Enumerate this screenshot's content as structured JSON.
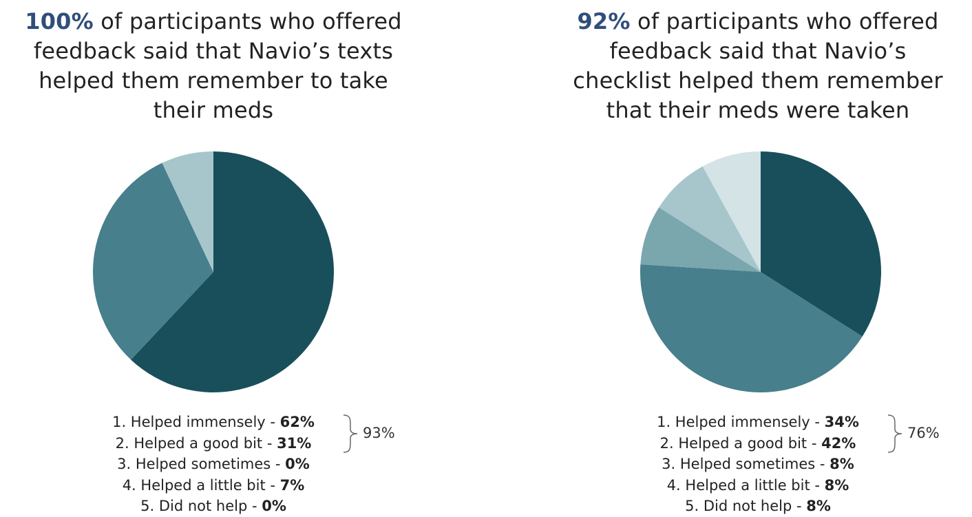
{
  "colors": {
    "highlight": "#2f4e7a",
    "slices": [
      "#184f5b",
      "#477f8c",
      "#7aa6ae",
      "#a7c6cb",
      "#d3e3e6"
    ]
  },
  "panels": [
    {
      "title_highlight": "100%",
      "title_lines": [
        "of participants who offered",
        "feedback said that Navio’s texts",
        "helped them remember to take",
        "their meds"
      ],
      "legend": [
        {
          "label": "1. Helped immensely - ",
          "value": "62%"
        },
        {
          "label": "2. Helped a good bit - ",
          "value": "31%"
        },
        {
          "label": "3. Helped sometimes - ",
          "value": "0%"
        },
        {
          "label": "4. Helped a little bit - ",
          "value": "7%"
        },
        {
          "label": "5. Did not help - ",
          "value": "0%"
        }
      ],
      "group_total": "93%"
    },
    {
      "title_highlight": "92%",
      "title_lines": [
        "of participants who offered",
        "feedback said that Navio’s",
        "checklist helped them remember",
        "that their meds were taken"
      ],
      "legend": [
        {
          "label": "1. Helped immensely - ",
          "value": "34%"
        },
        {
          "label": "2. Helped a good bit - ",
          "value": "42%"
        },
        {
          "label": "3. Helped sometimes - ",
          "value": "8%"
        },
        {
          "label": "4. Helped a little bit - ",
          "value": "8%"
        },
        {
          "label": "5. Did not help - ",
          "value": "8%"
        }
      ],
      "group_total": "76%"
    }
  ],
  "chart_data": [
    {
      "type": "pie",
      "categories": [
        "1. Helped immensely",
        "2. Helped a good bit",
        "3. Helped sometimes",
        "4. Helped a little bit",
        "5. Did not help"
      ],
      "values": [
        62,
        31,
        0,
        7,
        0
      ]
    },
    {
      "type": "pie",
      "categories": [
        "1. Helped immensely",
        "2. Helped a good bit",
        "3. Helped sometimes",
        "4. Helped a little bit",
        "5. Did not help"
      ],
      "values": [
        34,
        42,
        8,
        8,
        8
      ]
    }
  ]
}
